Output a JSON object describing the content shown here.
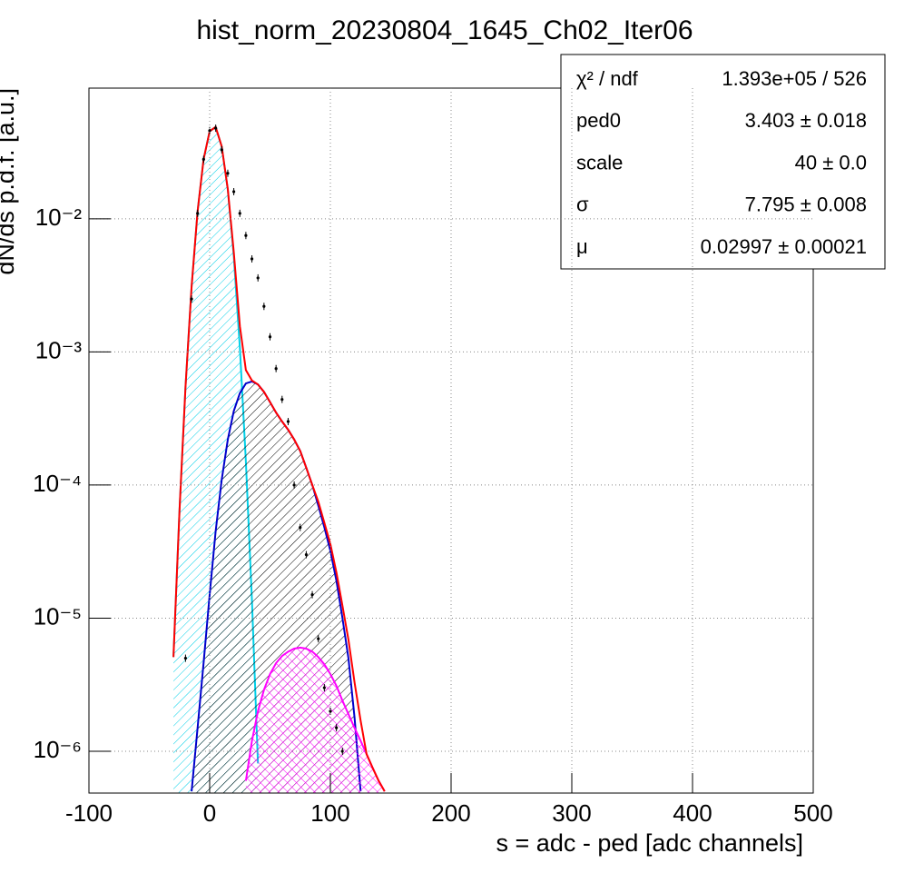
{
  "chart_data": {
    "type": "line",
    "title": "hist_norm_20230804_1645_Ch02_Iter06",
    "x_label": "s = adc - ped [adc channels]",
    "y_label": "dN/ds p.d.f. [a.u.]",
    "log_y": true,
    "grid": true,
    "xlim": [
      -100,
      500
    ],
    "xticks": [
      -100,
      0,
      100,
      200,
      300,
      400,
      500
    ],
    "ylim": [
      4.85e-07,
      0.096
    ],
    "yticks": [
      {
        "value": 1e-06,
        "label": "10⁻⁶"
      },
      {
        "value": 1e-05,
        "label": "10⁻⁵"
      },
      {
        "value": 0.0001,
        "label": "10⁻⁴"
      },
      {
        "value": 0.001,
        "label": "10⁻³"
      },
      {
        "value": 0.01,
        "label": "10⁻²"
      }
    ],
    "x": [
      -30,
      -25,
      -20,
      -15,
      -10,
      -5,
      0,
      5,
      10,
      15,
      20,
      25,
      30,
      35,
      40,
      45,
      50,
      55,
      60,
      65,
      70,
      75,
      80,
      85,
      90,
      95,
      100,
      105,
      110,
      115,
      120,
      125,
      130,
      135,
      140,
      145,
      150
    ],
    "series": [
      {
        "color": "#00d0e8",
        "style": "line",
        "hatch": true,
        "values": [
          5.1e-06,
          6.5e-05,
          0.00055,
          0.0031,
          0.0114,
          0.028,
          0.0455,
          0.049,
          0.0349,
          0.0165,
          0.0052,
          0.00107,
          0.00015,
          1.35e-05,
          8.1e-07,
          null,
          null,
          null,
          null,
          null,
          null,
          null,
          null,
          null,
          null,
          null,
          null,
          null,
          null,
          null,
          null,
          null,
          null,
          null,
          null,
          null,
          null
        ]
      },
      {
        "color": "#0000cc",
        "style": "line",
        "hatch": true,
        "values": [
          null,
          null,
          null,
          5e-07,
          1.5e-06,
          4.6e-06,
          1.5e-05,
          4.5e-05,
          0.00011,
          0.00022,
          0.00036,
          0.00049,
          0.00058,
          0.0006,
          0.00057,
          0.0005,
          0.00042,
          0.00035,
          0.0003,
          0.00026,
          0.00022,
          0.00018,
          0.000135,
          0.0001,
          7e-05,
          4.8e-05,
          3.2e-05,
          1.9e-05,
          1e-05,
          5e-06,
          1.8e-06,
          5e-07,
          null,
          null,
          null,
          null,
          null
        ]
      },
      {
        "color": "#ff00ff",
        "style": "line",
        "hatch": true,
        "values": [
          null,
          null,
          null,
          null,
          null,
          null,
          null,
          null,
          null,
          null,
          null,
          null,
          6e-07,
          1.2e-06,
          2e-06,
          2.9e-06,
          3.8e-06,
          4.6e-06,
          5.2e-06,
          5.6e-06,
          5.9e-06,
          6e-06,
          5.9e-06,
          5.6e-06,
          5.1e-06,
          4.5e-06,
          3.8e-06,
          3.1e-06,
          2.4e-06,
          1.9e-06,
          1.5e-06,
          1.2e-06,
          9.5e-07,
          7.5e-07,
          6e-07,
          5e-07,
          null
        ]
      },
      {
        "color": "#ff0000",
        "style": "line",
        "hatch": false,
        "values": [
          5.1e-06,
          6.5e-05,
          0.00055,
          0.0031,
          0.0114,
          0.028,
          0.0455,
          0.049,
          0.035,
          0.0167,
          0.0056,
          0.00156,
          0.00073,
          0.00061,
          0.00057,
          0.0005,
          0.00042,
          0.00035,
          0.0003,
          0.00026,
          0.00022,
          0.00018,
          0.000135,
          0.0001,
          7.5e-05,
          5.2e-05,
          3.6e-05,
          2.2e-05,
          1.24e-05,
          6.9e-06,
          3.3e-06,
          1.7e-06,
          9.5e-07,
          7.5e-07,
          6e-07,
          5e-07,
          null
        ]
      },
      {
        "color": "#000000",
        "style": "points",
        "hatch": false,
        "values": [
          null,
          null,
          5e-06,
          0.0025,
          0.011,
          0.028,
          0.046,
          0.048,
          0.033,
          0.022,
          0.016,
          0.011,
          0.0075,
          0.005,
          0.0036,
          0.0022,
          0.0013,
          0.00075,
          0.00044,
          0.0003,
          0.0001,
          4.8e-05,
          3e-05,
          1.5e-05,
          7e-06,
          3e-06,
          2e-06,
          1.5e-06,
          1e-06,
          null,
          null,
          null,
          null,
          null,
          null,
          null,
          null
        ]
      }
    ],
    "stats": [
      {
        "label": "χ² / ndf",
        "value": "1.393e+05 / 526"
      },
      {
        "label": "ped0",
        "value": "3.403 ± 0.018"
      },
      {
        "label": "scale",
        "value": "40 ± 0.0"
      },
      {
        "label": "σ",
        "value": "7.795 ± 0.008"
      },
      {
        "label": "μ",
        "value": "0.02997 ± 0.00021"
      }
    ]
  }
}
